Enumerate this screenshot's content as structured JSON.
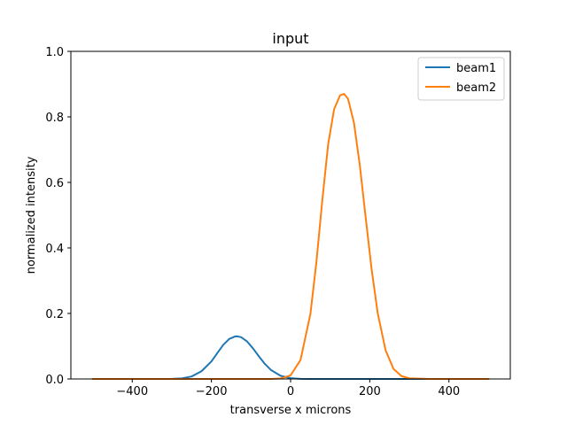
{
  "chart_data": {
    "type": "line",
    "title": "input",
    "xlabel": "transverse x microns",
    "ylabel": "normalized intensity",
    "xlim": [
      -555,
      555
    ],
    "ylim": [
      0,
      1.0
    ],
    "xticks": [
      -400,
      -200,
      0,
      200,
      400
    ],
    "xtick_labels": [
      "−400",
      "−200",
      "0",
      "200",
      "400"
    ],
    "yticks": [
      0.0,
      0.2,
      0.4,
      0.6,
      0.8,
      1.0
    ],
    "ytick_labels": [
      "0.0",
      "0.2",
      "0.4",
      "0.6",
      "0.8",
      "1.0"
    ],
    "grid": false,
    "legend_position": "top-right",
    "x": [
      -500,
      -450,
      -400,
      -350,
      -300,
      -275,
      -250,
      -225,
      -200,
      -185,
      -170,
      -155,
      -140,
      -135,
      -125,
      -110,
      -95,
      -80,
      -65,
      -50,
      -25,
      0,
      25,
      50,
      65,
      80,
      95,
      110,
      125,
      135,
      145,
      160,
      175,
      190,
      205,
      220,
      240,
      260,
      280,
      300,
      350,
      400,
      450,
      500
    ],
    "series": [
      {
        "name": "beam1",
        "color": "#1f77b4",
        "values": [
          0,
          0,
          0,
          0,
          0.0003,
          0.0018,
          0.0076,
          0.0236,
          0.0536,
          0.0792,
          0.1042,
          0.1222,
          0.1298,
          0.13,
          0.1275,
          0.1146,
          0.0934,
          0.0689,
          0.046,
          0.0278,
          0.0095,
          0.0024,
          0.0004,
          0.0001,
          0,
          0,
          0,
          0,
          0,
          0,
          0,
          0,
          0,
          0,
          0,
          0,
          0,
          0,
          0,
          0,
          0,
          0,
          0,
          0
        ]
      },
      {
        "name": "beam2",
        "color": "#ff7f0e",
        "values": [
          0,
          0,
          0,
          0,
          0,
          0,
          0,
          0,
          0,
          0,
          0,
          0,
          0,
          0,
          0,
          0,
          0,
          0,
          0,
          0.0001,
          0.0014,
          0.0111,
          0.0577,
          0.1979,
          0.3543,
          0.5439,
          0.7175,
          0.8236,
          0.8658,
          0.8702,
          0.8553,
          0.7826,
          0.6511,
          0.4893,
          0.3319,
          0.2013,
          0.0874,
          0.0308,
          0.0088,
          0.002,
          0,
          0,
          0,
          0
        ]
      }
    ]
  }
}
